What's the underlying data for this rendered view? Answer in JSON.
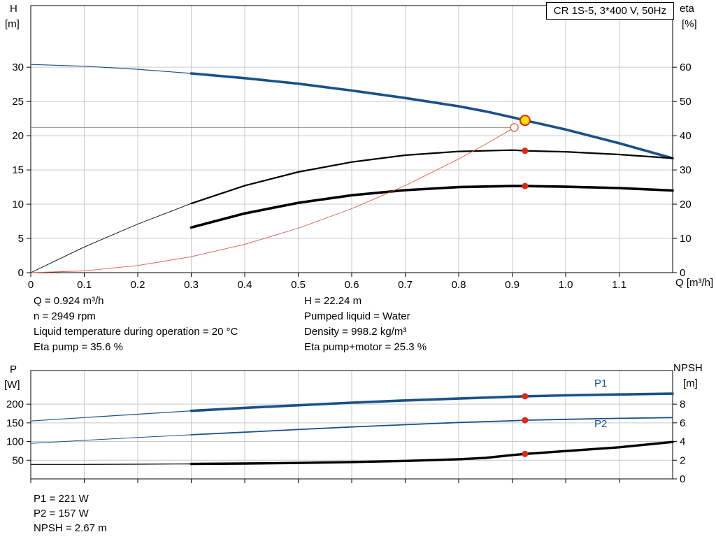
{
  "chart_data": [
    {
      "id": "hq-eta-chart",
      "type": "line",
      "title": "CR 1S-5, 3*400 V, 50Hz",
      "grid_color": "#c9c9c9",
      "x": {
        "label": "Q [m³/h]",
        "range": [
          0,
          1.2
        ],
        "ticks": [
          0,
          0.1,
          0.2,
          0.3,
          0.4,
          0.5,
          0.6,
          0.7,
          0.8,
          0.9,
          1.0,
          1.1
        ],
        "tick_labels": [
          "0",
          "0.1",
          "0.2",
          "0.3",
          "0.4",
          "0.5",
          "0.6",
          "0.7",
          "0.8",
          "0.9",
          "1.0",
          "1.1"
        ]
      },
      "y_left": {
        "label": [
          "H",
          "[m]"
        ],
        "range": [
          0,
          39
        ],
        "ticks": [
          0,
          5,
          10,
          15,
          20,
          25,
          30
        ],
        "tick_labels": [
          "0",
          "5",
          "10",
          "15",
          "20",
          "25",
          "30"
        ]
      },
      "y_right": {
        "label": [
          "eta",
          "[%]"
        ],
        "range": [
          0,
          78
        ],
        "ticks": [
          0,
          10,
          20,
          30,
          40,
          50,
          60
        ],
        "tick_labels": [
          "0",
          "10",
          "20",
          "30",
          "40",
          "50",
          "60"
        ]
      },
      "series": [
        {
          "id": "qh-curve",
          "name": "Pump curve H(Q)",
          "axis": "left",
          "color": "#1a5189",
          "width_thin": 1.2,
          "width_thick": 3.6,
          "thick_from": 0.3,
          "points": [
            [
              0,
              30.4
            ],
            [
              0.1,
              30.15
            ],
            [
              0.2,
              29.7
            ],
            [
              0.3,
              29.1
            ],
            [
              0.4,
              28.4
            ],
            [
              0.5,
              27.6
            ],
            [
              0.6,
              26.6
            ],
            [
              0.7,
              25.5
            ],
            [
              0.8,
              24.3
            ],
            [
              0.85,
              23.55
            ],
            [
              0.9,
              22.7
            ],
            [
              0.924,
              22.24
            ],
            [
              1.0,
              20.9
            ],
            [
              1.1,
              18.9
            ],
            [
              1.2,
              16.7
            ]
          ]
        },
        {
          "id": "eta-pump-curve",
          "name": "Eta pump",
          "axis": "right",
          "color": "#000000",
          "width_thin": 0.9,
          "width_thick": 2.2,
          "thick_from": 0.3,
          "points": [
            [
              0,
              0
            ],
            [
              0.1,
              7.5
            ],
            [
              0.2,
              14.2
            ],
            [
              0.3,
              20.2
            ],
            [
              0.4,
              25.4
            ],
            [
              0.5,
              29.4
            ],
            [
              0.6,
              32.3
            ],
            [
              0.7,
              34.3
            ],
            [
              0.8,
              35.4
            ],
            [
              0.9,
              35.8
            ],
            [
              0.924,
              35.6
            ],
            [
              1.0,
              35.3
            ],
            [
              1.1,
              34.5
            ],
            [
              1.2,
              33.4
            ]
          ]
        },
        {
          "id": "eta-pump-motor-curve",
          "name": "Eta pump+motor",
          "axis": "right",
          "color": "#000000",
          "width_thin": 1.0,
          "width_thick": 3.6,
          "thick_from": 0.3,
          "points": [
            [
              0.3,
              13.2
            ],
            [
              0.4,
              17.3
            ],
            [
              0.5,
              20.4
            ],
            [
              0.6,
              22.6
            ],
            [
              0.7,
              24.1
            ],
            [
              0.8,
              25.0
            ],
            [
              0.9,
              25.3
            ],
            [
              0.924,
              25.3
            ],
            [
              1.0,
              25.1
            ],
            [
              1.1,
              24.7
            ],
            [
              1.2,
              24.0
            ]
          ]
        },
        {
          "id": "system-curve",
          "name": "System/duty curve",
          "axis": "left",
          "color": "#dd5848",
          "width_thin": 0.9,
          "width_thick": 0.9,
          "thick_from": null,
          "points": [
            [
              0,
              0
            ],
            [
              0.1,
              0.26
            ],
            [
              0.2,
              1.04
            ],
            [
              0.3,
              2.33
            ],
            [
              0.4,
              4.15
            ],
            [
              0.5,
              6.48
            ],
            [
              0.6,
              9.34
            ],
            [
              0.7,
              12.71
            ],
            [
              0.8,
              16.6
            ],
            [
              0.85,
              18.74
            ],
            [
              0.9,
              21.0
            ],
            [
              0.904,
              21.2
            ]
          ]
        }
      ],
      "ref_lines": [
        {
          "id": "head-reference-line",
          "axis": "left",
          "y": 21.2,
          "x_from": 0,
          "x_to": 0.904,
          "color": "#808080",
          "width": 0.9
        }
      ],
      "markers": [
        {
          "id": "requested-duty-point",
          "x": 0.904,
          "y": 21.2,
          "axis": "left",
          "r": 5.5,
          "fill": "#ffffff",
          "stroke": "#dd5848",
          "sw": 1.3
        },
        {
          "id": "duty-point",
          "x": 0.924,
          "y": 22.24,
          "axis": "left",
          "r": 7,
          "fill": "#ffdf00",
          "stroke": "#e02515",
          "sw": 2
        },
        {
          "id": "eta-pump-duty-dot",
          "x": 0.924,
          "y": 35.6,
          "axis": "right",
          "r": 4.5,
          "fill": "#e02515",
          "stroke": "none",
          "sw": 0
        },
        {
          "id": "eta-pump-motor-duty-dot",
          "x": 0.924,
          "y": 25.3,
          "axis": "right",
          "r": 4.5,
          "fill": "#e02515",
          "stroke": "none",
          "sw": 0
        }
      ],
      "annotations": []
    },
    {
      "id": "power-npsh-chart",
      "type": "line",
      "title": "",
      "grid_color": "#c9c9c9",
      "x": {
        "label": "",
        "range": [
          0,
          1.2
        ],
        "ticks": [
          0,
          0.1,
          0.2,
          0.3,
          0.4,
          0.5,
          0.6,
          0.7,
          0.8,
          0.9,
          1.0,
          1.1
        ]
      },
      "y_left": {
        "label": [
          "P",
          "[W]"
        ],
        "range": [
          0,
          290
        ],
        "ticks": [
          50,
          100,
          150,
          200
        ],
        "tick_labels": [
          "50",
          "100",
          "150",
          "200"
        ]
      },
      "y_right": {
        "label": [
          "NPSH",
          "[m]"
        ],
        "range": [
          0,
          11.6
        ],
        "ticks": [
          0,
          2,
          4,
          6,
          8
        ],
        "tick_labels": [
          "0",
          "2",
          "4",
          "6",
          "8"
        ]
      },
      "series": [
        {
          "id": "p1-curve",
          "name": "P1",
          "axis": "left",
          "color": "#1a5189",
          "width_thin": 1.2,
          "width_thick": 3.6,
          "thick_from": 0.3,
          "points": [
            [
              0,
              155
            ],
            [
              0.1,
              164
            ],
            [
              0.2,
              173
            ],
            [
              0.3,
              182
            ],
            [
              0.4,
              190
            ],
            [
              0.5,
              197
            ],
            [
              0.6,
              204
            ],
            [
              0.7,
              210
            ],
            [
              0.8,
              215
            ],
            [
              0.9,
              220
            ],
            [
              0.924,
              221
            ],
            [
              1.0,
              223.5
            ],
            [
              1.1,
              226
            ],
            [
              1.2,
              228
            ]
          ]
        },
        {
          "id": "p2-curve",
          "name": "P2",
          "axis": "left",
          "color": "#1a5189",
          "width_thin": 1.0,
          "width_thick": 1.8,
          "thick_from": 0.3,
          "points": [
            [
              0,
              95
            ],
            [
              0.1,
              103
            ],
            [
              0.2,
              111
            ],
            [
              0.3,
              118
            ],
            [
              0.4,
              125
            ],
            [
              0.5,
              132
            ],
            [
              0.6,
              139
            ],
            [
              0.7,
              145
            ],
            [
              0.8,
              151
            ],
            [
              0.9,
              155.5
            ],
            [
              0.924,
              157
            ],
            [
              1.0,
              159.5
            ],
            [
              1.1,
              162
            ],
            [
              1.2,
              164
            ]
          ]
        },
        {
          "id": "npsh-curve",
          "name": "NPSH",
          "axis": "right",
          "color": "#000000",
          "width_thin": 1.2,
          "width_thick": 3.4,
          "thick_from": 0.3,
          "points": [
            [
              0,
              1.55
            ],
            [
              0.1,
              1.55
            ],
            [
              0.2,
              1.57
            ],
            [
              0.3,
              1.6
            ],
            [
              0.4,
              1.65
            ],
            [
              0.5,
              1.71
            ],
            [
              0.6,
              1.8
            ],
            [
              0.7,
              1.92
            ],
            [
              0.8,
              2.1
            ],
            [
              0.85,
              2.25
            ],
            [
              0.9,
              2.55
            ],
            [
              0.924,
              2.67
            ],
            [
              1.0,
              2.98
            ],
            [
              1.1,
              3.38
            ],
            [
              1.2,
              3.95
            ]
          ]
        }
      ],
      "ref_lines": [],
      "markers": [
        {
          "id": "p1-duty-dot",
          "x": 0.924,
          "y": 221,
          "axis": "left",
          "r": 4.5,
          "fill": "#e02515",
          "stroke": "none",
          "sw": 0
        },
        {
          "id": "p2-duty-dot",
          "x": 0.924,
          "y": 157,
          "axis": "left",
          "r": 4.5,
          "fill": "#e02515",
          "stroke": "none",
          "sw": 0
        },
        {
          "id": "npsh-duty-dot",
          "x": 0.924,
          "y": 2.67,
          "axis": "right",
          "r": 4.5,
          "fill": "#e02515",
          "stroke": "none",
          "sw": 0
        }
      ],
      "annotations": [
        {
          "id": "p1-label",
          "text": "P1"
        },
        {
          "id": "p2-label",
          "text": "P2"
        }
      ]
    }
  ],
  "info": {
    "left": [
      "Q = 0.924 m³/h",
      "n = 2949 rpm",
      "Liquid temperature during operation = 20 °C",
      "Eta pump = 35.6 %"
    ],
    "right": [
      "H = 22.24 m",
      "Pumped liquid = Water",
      "Density = 998.2 kg/m³",
      "Eta pump+motor = 25.3 %"
    ],
    "bottom": [
      "P1 = 221 W",
      "P2 = 157 W",
      "NPSH = 2.67 m"
    ]
  }
}
